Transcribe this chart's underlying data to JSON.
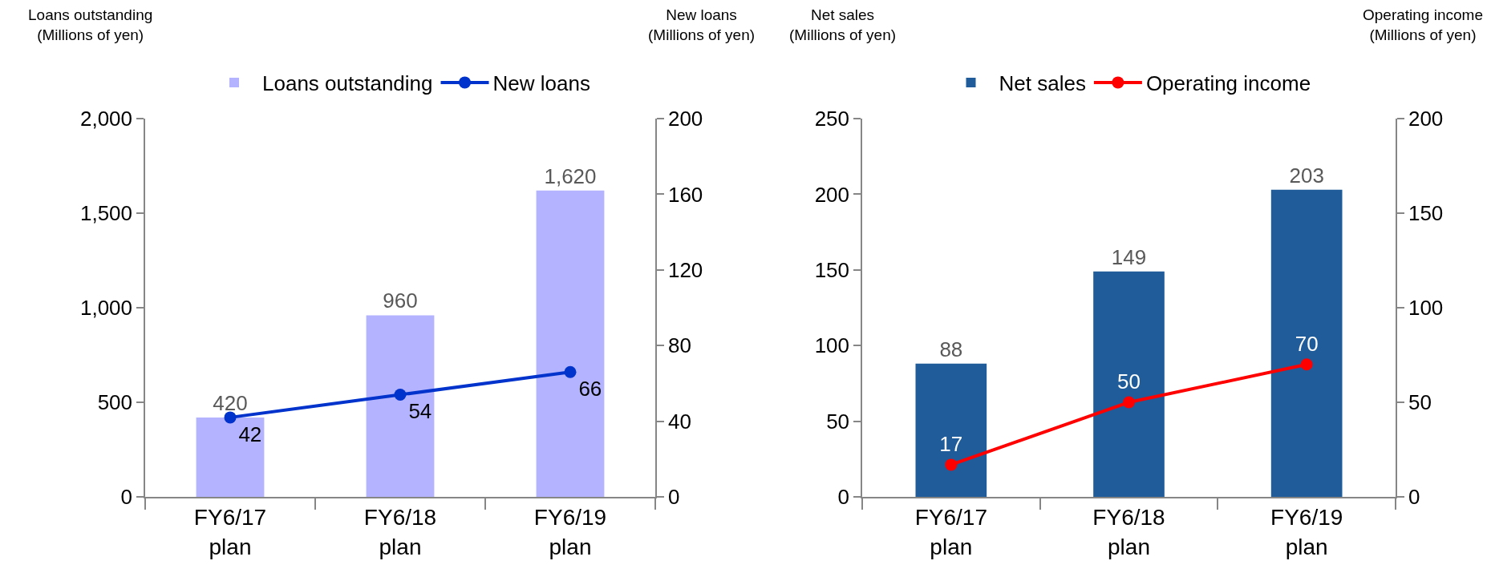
{
  "chart_data": [
    {
      "type": "bar",
      "categories": [
        "FY6/17 plan",
        "FY6/18 plan",
        "FY6/19 plan"
      ],
      "ylabel": "Loans outstanding\n(Millions of yen)",
      "y2label": "New loans\n(Millions of yen)",
      "series": [
        {
          "name": "Loans outstanding",
          "color": "#b3b3ff",
          "values": [
            420,
            960,
            1620
          ],
          "value_labels": [
            "420",
            "960",
            "1,620"
          ]
        },
        {
          "name": "New loans",
          "type": "line",
          "axis": "y2",
          "color": "#0033cc",
          "values": [
            42,
            54,
            66
          ],
          "value_labels": [
            "42",
            "54",
            "66"
          ]
        }
      ],
      "ylim": [
        0,
        2000
      ],
      "yticks": [
        0,
        500,
        {
          "value": 1000,
          "label": "1,000"
        },
        {
          "value": 1500,
          "label": "1,500"
        },
        {
          "value": 2000,
          "label": "2,000"
        }
      ],
      "y2lim": [
        0,
        200
      ],
      "y2ticks": [
        0,
        40,
        80,
        120,
        160,
        200
      ],
      "legend": "top",
      "marker": "circle"
    },
    {
      "type": "bar",
      "categories": [
        "FY6/17 plan",
        "FY6/18 plan",
        "FY6/19 plan"
      ],
      "ylabel": "Net sales\n(Millions of yen)",
      "y2label": "Operating income\n(Millions of yen)",
      "series": [
        {
          "name": "Net sales",
          "color": "#1f5c99",
          "values": [
            88,
            149,
            203
          ],
          "value_labels": [
            "88",
            "149",
            "203"
          ]
        },
        {
          "name": "Operating income",
          "type": "line",
          "axis": "y2",
          "color": "#ff0000",
          "values": [
            17,
            50,
            70
          ],
          "value_labels": [
            "17",
            "50",
            "70"
          ]
        }
      ],
      "ylim": [
        0,
        250
      ],
      "yticks": [
        0,
        50,
        100,
        150,
        200,
        250
      ],
      "y2lim": [
        0,
        200
      ],
      "y2ticks": [
        0,
        50,
        100,
        150,
        200
      ],
      "legend": "top",
      "marker": "circle"
    }
  ]
}
